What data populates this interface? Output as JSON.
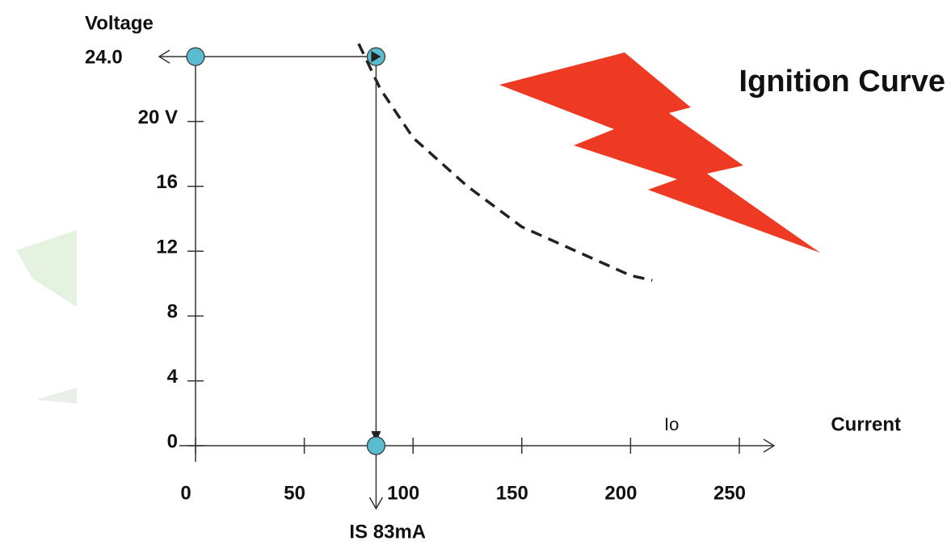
{
  "chart_data": {
    "type": "line",
    "title": "Ignition Curve",
    "y_label": "Voltage",
    "x_label": "Current",
    "curve_label": "Io",
    "xlim": [
      0,
      250
    ],
    "xticks": [
      0,
      50,
      100,
      150,
      200,
      250
    ],
    "ylim": [
      0,
      26
    ],
    "yticks": [
      0,
      4,
      8,
      12,
      16,
      {
        "value": 20,
        "label": "20 V"
      }
    ],
    "curve": {
      "color": "#222222",
      "dashed": true,
      "x": [
        75,
        85,
        100,
        125,
        150,
        175,
        200,
        210
      ],
      "values": [
        24.8,
        22,
        19,
        16,
        13.5,
        12,
        10.5,
        10.2
      ]
    },
    "reference": {
      "voltage": 24,
      "voltage_label": "24.0",
      "current": 83,
      "current_label": "IS 83mA",
      "marker_color": "#5bbcd0"
    }
  }
}
